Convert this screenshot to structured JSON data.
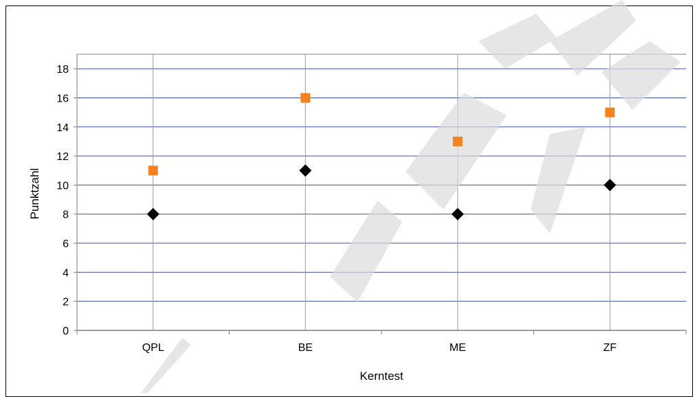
{
  "chart_data": {
    "type": "scatter",
    "title": "",
    "xlabel": "Kerntest",
    "ylabel": "Punktzahl",
    "categories": [
      "QPL",
      "BE",
      "ME",
      "ZF"
    ],
    "ylim": [
      0,
      19
    ],
    "yticks": [
      0,
      2,
      4,
      6,
      8,
      10,
      12,
      14,
      16,
      18
    ],
    "grid": true,
    "legend": "none",
    "series": [
      {
        "values": [
          11,
          16,
          13,
          15
        ],
        "color": "#f5821f",
        "marker": "square"
      },
      {
        "values": [
          8,
          11,
          8,
          10
        ],
        "color": "#000000",
        "marker": "diamond"
      }
    ],
    "colors": {
      "grid": "#3a4fa0",
      "vgrid": "#9a9aa4",
      "axis": "#7f7f7f",
      "watermark": "#dcdcdc"
    }
  }
}
